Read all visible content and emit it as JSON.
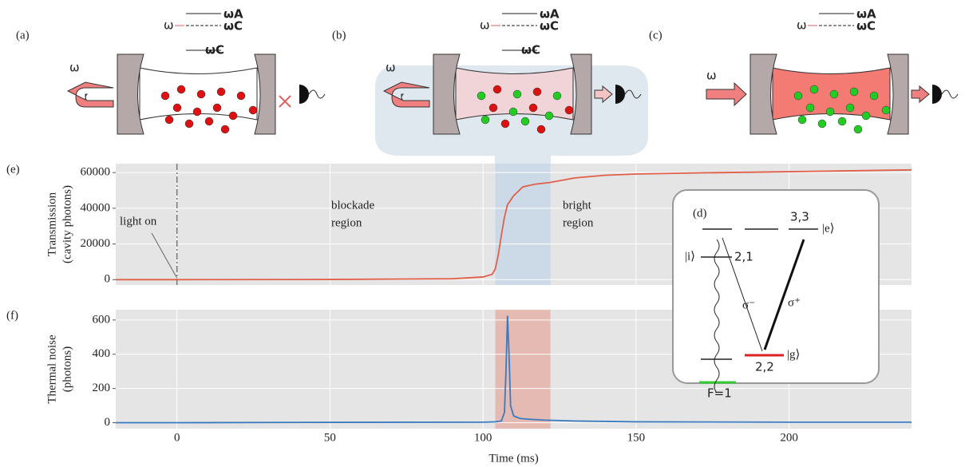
{
  "schematics": [
    {
      "label": "(a)",
      "probe": "ω",
      "levels": [
        "ωA",
        "ωC",
        "ωC"
      ],
      "beam": "ω"
    },
    {
      "label": "(b)",
      "probe": "ω",
      "levels": [
        "ωA",
        "ωC",
        "ωC"
      ],
      "beam": "ω"
    },
    {
      "label": "(c)",
      "probe": "ω",
      "levels": [
        "ωA",
        "ωC"
      ],
      "beam": "ω"
    }
  ],
  "inset": {
    "label": "(d)",
    "texts": [
      "3,3",
      "|e⟩",
      "|i⟩",
      "2,1",
      "σ⁻",
      "σ⁺",
      "2,2",
      "|g⟩",
      "F=1"
    ]
  },
  "chart_data": [
    {
      "type": "line",
      "panel_label": "(e)",
      "y_label": [
        "Transmission",
        "(cavity photons)"
      ],
      "x": [
        -20,
        0,
        50,
        90,
        100,
        103,
        104,
        105,
        106,
        107,
        108,
        110,
        113,
        117,
        122,
        130,
        140,
        150,
        170,
        200,
        220,
        240
      ],
      "series": [
        {
          "color": "#e0604a",
          "values": [
            0,
            0,
            100,
            500,
            1500,
            3000,
            6000,
            14000,
            25000,
            35000,
            42000,
            47000,
            52000,
            53500,
            54500,
            57000,
            58500,
            59200,
            59800,
            60500,
            61000,
            61500
          ]
        }
      ],
      "xlim": [
        -20,
        240
      ],
      "ylim": [
        -3000,
        65000
      ],
      "xticks": [
        0,
        50,
        100,
        150,
        200
      ],
      "yticks": [
        0,
        20000,
        40000,
        60000
      ],
      "xtick_labels": false,
      "grid": true,
      "marker_x": 0,
      "shaded_region": {
        "x": [
          104,
          122
        ],
        "color": "#c9d8e8"
      },
      "annotations": [
        [
          "light on"
        ],
        [
          "blockade",
          "region"
        ],
        [
          "bright",
          "region"
        ]
      ]
    },
    {
      "type": "line",
      "panel_label": "(f)",
      "y_label": [
        "Thermal noise",
        "(photons)"
      ],
      "x_label": "Time (ms)",
      "x": [
        -20,
        -10,
        0,
        50,
        100,
        104,
        106,
        107,
        107.5,
        108,
        108.5,
        109,
        110,
        112,
        115,
        120,
        130,
        150,
        200,
        240
      ],
      "series": [
        {
          "color": "#3a7bbf",
          "values": [
            0,
            0,
            0,
            2,
            3,
            5,
            10,
            60,
            300,
            625,
            400,
            100,
            40,
            25,
            20,
            15,
            10,
            5,
            3,
            3
          ]
        }
      ],
      "xlim": [
        -20,
        240
      ],
      "ylim": [
        -35,
        660
      ],
      "xticks": [
        0,
        50,
        100,
        150,
        200
      ],
      "yticks": [
        0,
        200,
        400,
        600
      ],
      "xtick_labels": true,
      "grid": true,
      "shaded_region": {
        "x": [
          104,
          122
        ],
        "color": "#e4b5ad"
      }
    }
  ]
}
